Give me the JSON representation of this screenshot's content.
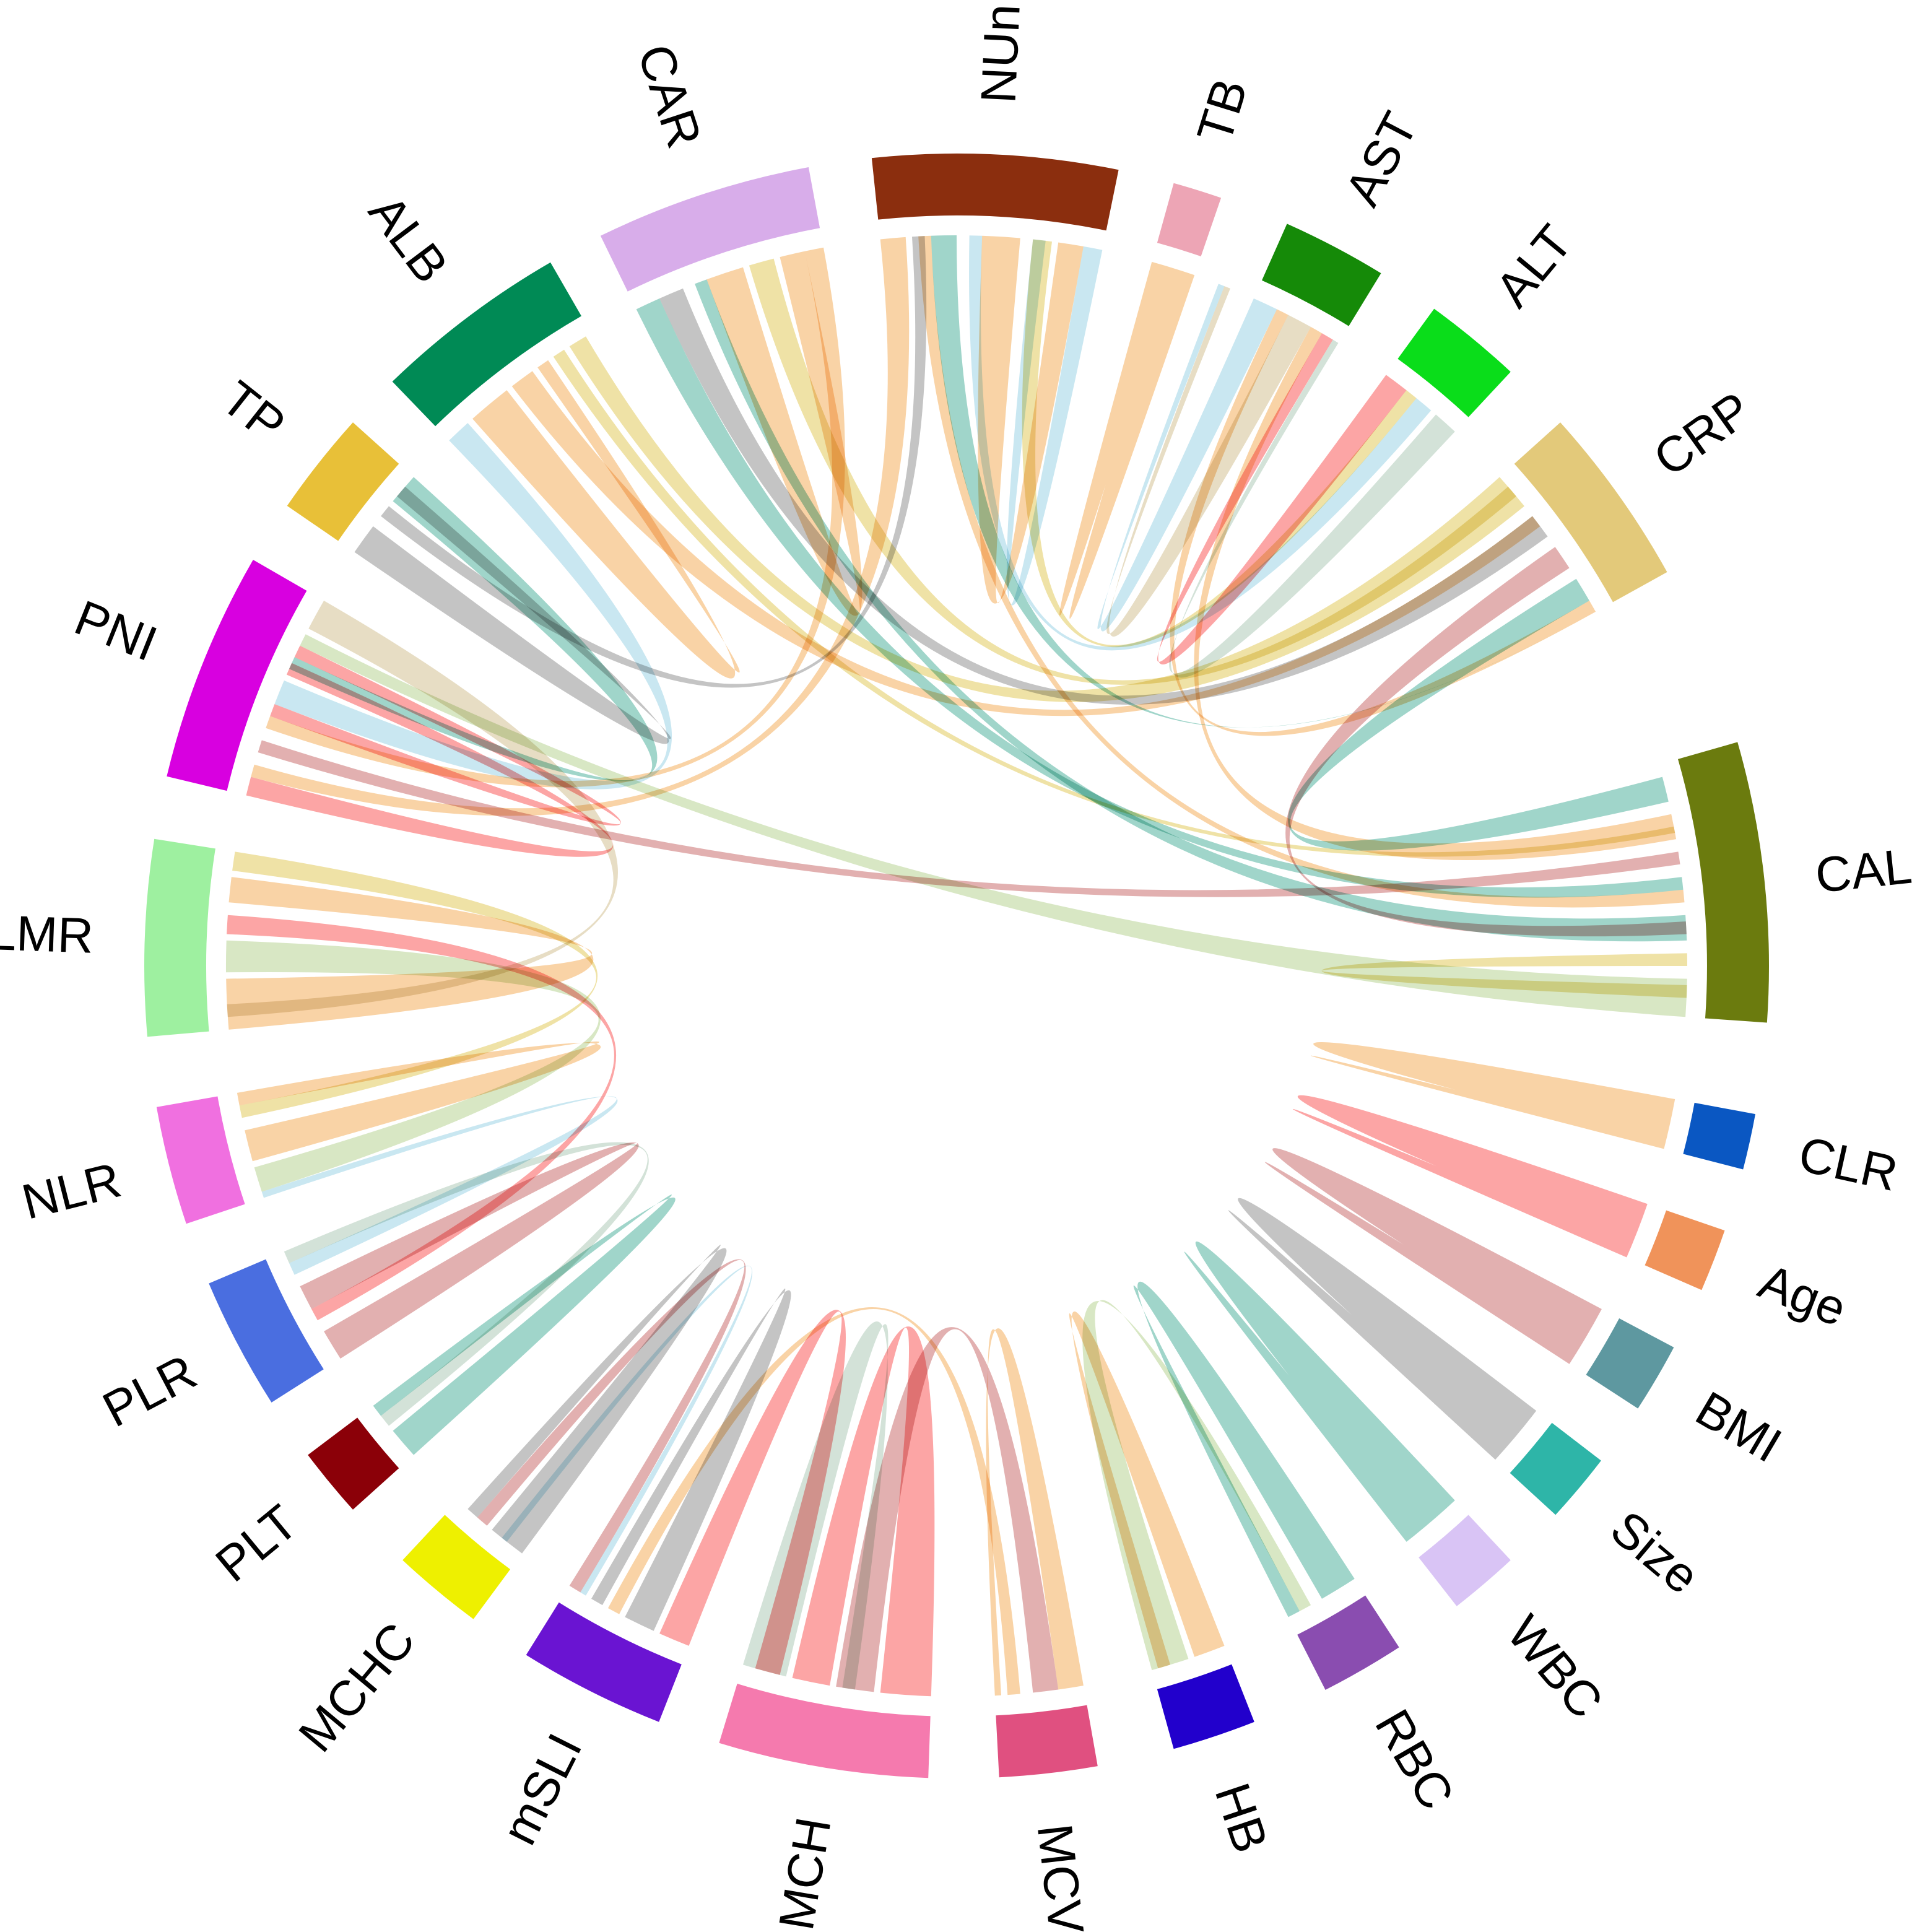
{
  "chart_data": {
    "type": "chord",
    "title": "",
    "sectors": [
      {
        "label": "CALLY",
        "color": "#6B7B0E",
        "start_deg": 16,
        "end_deg": -4
      },
      {
        "label": "CLR",
        "color": "#0A57C2",
        "start_deg": -10.5,
        "end_deg": -14.5
      },
      {
        "label": "Age",
        "color": "#F0935A",
        "start_deg": -19,
        "end_deg": -23.5
      },
      {
        "label": "BMI",
        "color": "#5E98A0",
        "start_deg": -28,
        "end_deg": -33
      },
      {
        "label": "Size",
        "color": "#2EB5A8",
        "start_deg": -37.5,
        "end_deg": -42.5
      },
      {
        "label": "WBC",
        "color": "#D9C4F5",
        "start_deg": -47,
        "end_deg": -52
      },
      {
        "label": "RBC",
        "color": "#8A4DB0",
        "start_deg": -57,
        "end_deg": -63
      },
      {
        "label": "HB",
        "color": "#2200CC",
        "start_deg": -68.5,
        "end_deg": -74.5
      },
      {
        "label": "MCV",
        "color": "#E05080",
        "start_deg": -80,
        "end_deg": -87
      },
      {
        "label": "MCH",
        "color": "#F57AAE",
        "start_deg": -92,
        "end_deg": -107
      },
      {
        "label": "mSLI",
        "color": "#6A14D2",
        "start_deg": -111.5,
        "end_deg": -122
      },
      {
        "label": "MCHC",
        "color": "#EEF000",
        "start_deg": -126.5,
        "end_deg": -133
      },
      {
        "label": "PLT",
        "color": "#8B0008",
        "start_deg": -138,
        "end_deg": -143
      },
      {
        "label": "PLR",
        "color": "#4A6EE0",
        "start_deg": -147.5,
        "end_deg": -157
      },
      {
        "label": "NLR",
        "color": "#F070E0",
        "start_deg": -161.5,
        "end_deg": -170
      },
      {
        "label": "LMR",
        "color": "#9EF0A0",
        "start_deg": -175,
        "end_deg": -189
      },
      {
        "label": "PNI",
        "color": "#D800E0",
        "start_deg": -193.5,
        "end_deg": -210
      },
      {
        "label": "TP",
        "color": "#E8C038",
        "start_deg": -214.5,
        "end_deg": -222
      },
      {
        "label": "ALB",
        "color": "#008A55",
        "start_deg": -226,
        "end_deg": -240
      },
      {
        "label": "CAR",
        "color": "#D8ADEA",
        "start_deg": -244,
        "end_deg": -259.5
      },
      {
        "label": "NUn",
        "color": "#8B2E0E",
        "start_deg": -264,
        "end_deg": -281.5
      },
      {
        "label": "TB",
        "color": "#EDA5B5",
        "start_deg": -285.5,
        "end_deg": -289
      },
      {
        "label": "AST",
        "color": "#158A08",
        "start_deg": -294,
        "end_deg": -301.5
      },
      {
        "label": "ALT",
        "color": "#0ADD1A",
        "start_deg": -306,
        "end_deg": -313
      },
      {
        "label": "CRP",
        "color": "#E3C97A",
        "start_deg": -318,
        "end_deg": -331
      }
    ],
    "links": [
      {
        "from": "CLR",
        "from_range": [
          -10.5,
          -14.5
        ],
        "to": "CLR",
        "to_range": [
          -13.9,
          -14.1
        ],
        "color": "#F5B870"
      },
      {
        "from": "Age",
        "from_range": [
          -19,
          -23.5
        ],
        "to": "Age",
        "to_range": [
          -22.6,
          -22.8
        ],
        "color": "#FA6E6E"
      },
      {
        "from": "BMI",
        "from_range": [
          -28,
          -33
        ],
        "to": "BMI",
        "to_range": [
          -31.9,
          -32.1
        ],
        "color": "#D08080"
      },
      {
        "from": "Size",
        "from_range": [
          -37.5,
          -42.5
        ],
        "to": "Size",
        "to_range": [
          -41.4,
          -41.6
        ],
        "color": "#A0A0A0"
      },
      {
        "from": "WBC",
        "from_range": [
          -47,
          -52
        ],
        "to": "WBC",
        "to_range": [
          -50.9,
          -51.1
        ],
        "color": "#66BBAA"
      },
      {
        "from": "TB",
        "from_range": [
          -285.5,
          -289
        ],
        "to": "TB",
        "to_range": [
          -287.1,
          -287.3
        ],
        "color": "#F5B870"
      },
      {
        "from": "CALLY",
        "from_range": [
          -1,
          -4
        ],
        "to": "PNI",
        "to_range": [
          -206,
          -207
        ],
        "color": "#C0D8A0"
      },
      {
        "from": "CALLY",
        "from_range": [
          9,
          8
        ],
        "to": "PNI",
        "to_range": [
          -197,
          -198
        ],
        "color": "#D08080"
      },
      {
        "from": "CALLY",
        "from_range": [
          4,
          2
        ],
        "to": "CAR",
        "to_range": [
          -249,
          -250
        ],
        "color": "#66BBAA"
      },
      {
        "from": "CALLY",
        "from_range": [
          15,
          13
        ],
        "to": "CRP",
        "to_range": [
          -328,
          -330
        ],
        "color": "#66BBAA"
      },
      {
        "from": "CALLY",
        "from_range": [
          12,
          10
        ],
        "to": "AST",
        "to_range": [
          -299,
          -300
        ],
        "color": "#F5B870"
      },
      {
        "from": "CALLY",
        "from_range": [
          6,
          5
        ],
        "to": "NUn",
        "to_range": [
          -267,
          -268
        ],
        "color": "#F5B870"
      },
      {
        "from": "CALLY",
        "from_range": [
          1,
          0
        ],
        "to": "CALLY",
        "to_range": [
          -1.5,
          -2.5
        ],
        "color": "#E5D070"
      },
      {
        "from": "CRP",
        "from_range": [
          -318,
          -321
        ],
        "to": "ALB",
        "to_range": [
          -238,
          -239.5
        ],
        "color": "#E5D070"
      },
      {
        "from": "CRP",
        "from_range": [
          -322,
          -324
        ],
        "to": "CAR",
        "to_range": [
          -246,
          -248
        ],
        "color": "#A0A0A0"
      },
      {
        "from": "CRP",
        "from_range": [
          -325,
          -327
        ],
        "to": "CALLY",
        "to_range": [
          3.5,
          2.5
        ],
        "color": "#D08080"
      },
      {
        "from": "CRP",
        "from_range": [
          -330,
          -331
        ],
        "to": "AST",
        "to_range": [
          -296,
          -297
        ],
        "color": "#F5B870"
      },
      {
        "from": "ALT",
        "from_range": [
          -306,
          -308
        ],
        "to": "ALT",
        "to_range": [
          -300,
          -301
        ],
        "color": "#FA6E6E"
      },
      {
        "from": "ALT",
        "from_range": [
          -309,
          -310.5
        ],
        "to": "NUn",
        "to_range": [
          -271,
          -272
        ],
        "color": "#A8D8E8"
      },
      {
        "from": "ALT",
        "from_range": [
          -311,
          -313
        ],
        "to": "AST",
        "to_range": [
          -301,
          -301.5
        ],
        "color": "#B8D0C0"
      },
      {
        "from": "AST",
        "from_range": [
          -294,
          -296
        ],
        "to": "AST",
        "to_range": [
          -291,
          -291.5
        ],
        "color": "#A8D8E8"
      },
      {
        "from": "AST",
        "from_range": [
          -297,
          -299
        ],
        "to": "AST",
        "to_range": [
          -291.5,
          -292
        ],
        "color": "#D8C8A0"
      },
      {
        "from": "NUn",
        "from_range": [
          -264,
          -266
        ],
        "to": "PNI",
        "to_range": [
          -195,
          -196
        ],
        "color": "#F5B870"
      },
      {
        "from": "NUn",
        "from_range": [
          -266.5,
          -267.5
        ],
        "to": "TP",
        "to_range": [
          -218,
          -219
        ],
        "color": "#A0A0A0"
      },
      {
        "from": "NUn",
        "from_range": [
          -268,
          -270
        ],
        "to": "CRP",
        "to_range": [
          -331,
          -331
        ],
        "color": "#66BBAA"
      },
      {
        "from": "NUn",
        "from_range": [
          -272,
          -275
        ],
        "to": "NUn",
        "to_range": [
          -278,
          -280
        ],
        "color": "#F5B870"
      },
      {
        "from": "NUn",
        "from_range": [
          -276,
          -277.5
        ],
        "to": "ALT",
        "to_range": [
          -308,
          -309
        ],
        "color": "#E5D070"
      },
      {
        "from": "NUn",
        "from_range": [
          -280,
          -281.5
        ],
        "to": "NUn",
        "to_range": [
          -276,
          -277
        ],
        "color": "#A8D8E8"
      },
      {
        "from": "CAR",
        "from_range": [
          -244,
          -246
        ],
        "to": "CALLY",
        "to_range": [
          7,
          6
        ],
        "color": "#66BBAA"
      },
      {
        "from": "CAR",
        "from_range": [
          -250,
          -253
        ],
        "to": "CAR",
        "to_range": [
          -256,
          -258
        ],
        "color": "#F5B870"
      },
      {
        "from": "CAR",
        "from_range": [
          -253.5,
          -255.5
        ],
        "to": "CRP",
        "to_range": [
          -319,
          -320
        ],
        "color": "#E5D070"
      },
      {
        "from": "CAR",
        "from_range": [
          -258,
          -259.5
        ],
        "to": "PNI",
        "to_range": [
          -199,
          -200
        ],
        "color": "#F5B870"
      },
      {
        "from": "ALB",
        "from_range": [
          -226,
          -228
        ],
        "to": "PNI",
        "to_range": [
          -201,
          -203
        ],
        "color": "#A8D8E8"
      },
      {
        "from": "ALB",
        "from_range": [
          -228.5,
          -232
        ],
        "to": "ALB",
        "to_range": [
          -235,
          -236
        ],
        "color": "#F5B870"
      },
      {
        "from": "ALB",
        "from_range": [
          -232.5,
          -234.5
        ],
        "to": "CRP",
        "to_range": [
          -322,
          -323
        ],
        "color": "#F5B870"
      },
      {
        "from": "ALB",
        "from_range": [
          -236.5,
          -237.5
        ],
        "to": "CALLY",
        "to_range": [
          11,
          10.5
        ],
        "color": "#E5D070"
      },
      {
        "from": "TP",
        "from_range": [
          -214.5,
          -217
        ],
        "to": "TP",
        "to_range": [
          -220,
          -221
        ],
        "color": "#A0A0A0"
      },
      {
        "from": "TP",
        "from_range": [
          -219.5,
          -222
        ],
        "to": "PNI",
        "to_range": [
          -204,
          -205
        ],
        "color": "#66BBAA"
      },
      {
        "from": "PNI",
        "from_range": [
          -193.5,
          -195
        ],
        "to": "PNI",
        "to_range": [
          -203.5,
          -204.5
        ],
        "color": "#FA6E6E"
      },
      {
        "from": "PNI",
        "from_range": [
          -207.5,
          -210
        ],
        "to": "LMR",
        "to_range": [
          -176,
          -177
        ],
        "color": "#D8C8A0"
      },
      {
        "from": "PNI",
        "from_range": [
          -200,
          -201
        ],
        "to": "PNI",
        "to_range": [
          -205,
          -206
        ],
        "color": "#FA6E6E"
      },
      {
        "from": "LMR",
        "from_range": [
          -175,
          -179
        ],
        "to": "LMR",
        "to_range": [
          -185,
          -187
        ],
        "color": "#F5B870"
      },
      {
        "from": "LMR",
        "from_range": [
          -179.5,
          -182
        ],
        "to": "NLR",
        "to_range": [
          -162,
          -164
        ],
        "color": "#C0D8A0"
      },
      {
        "from": "LMR",
        "from_range": [
          -182.5,
          -184
        ],
        "to": "PLR",
        "to_range": [
          -151,
          -152
        ],
        "color": "#FA6E6E"
      },
      {
        "from": "LMR",
        "from_range": [
          -187.5,
          -189
        ],
        "to": "NLR",
        "to_range": [
          -168,
          -169
        ],
        "color": "#E5D070"
      },
      {
        "from": "NLR",
        "from_range": [
          -164.5,
          -167
        ],
        "to": "NLR",
        "to_range": [
          -169,
          -170
        ],
        "color": "#F5B870"
      },
      {
        "from": "NLR",
        "from_range": [
          -161.5,
          -162
        ],
        "to": "PLR",
        "to_range": [
          -155,
          -156
        ],
        "color": "#A8D8E8"
      },
      {
        "from": "PLR",
        "from_range": [
          -147.5,
          -150
        ],
        "to": "PLR",
        "to_range": [
          -152,
          -154
        ],
        "color": "#D08080"
      },
      {
        "from": "PLR",
        "from_range": [
          -156,
          -157
        ],
        "to": "PLT",
        "to_range": [
          -141,
          -142
        ],
        "color": "#B8D0C0"
      },
      {
        "from": "PLT",
        "from_range": [
          -138,
          -140.5
        ],
        "to": "PLT",
        "to_range": [
          -142,
          -143
        ],
        "color": "#66BBAA"
      },
      {
        "from": "MCHC",
        "from_range": [
          -126.5,
          -129.5
        ],
        "to": "MCHC",
        "to_range": [
          -131,
          -132
        ],
        "color": "#A0A0A0"
      },
      {
        "from": "MCHC",
        "from_range": [
          -130,
          -131
        ],
        "to": "mSLI",
        "to_range": [
          -121,
          -122
        ],
        "color": "#D08080"
      },
      {
        "from": "mSLI",
        "from_range": [
          -111.5,
          -114
        ],
        "to": "MCH",
        "to_range": [
          -104,
          -106
        ],
        "color": "#FA6E6E"
      },
      {
        "from": "mSLI",
        "from_range": [
          -114.5,
          -117
        ],
        "to": "mSLI",
        "to_range": [
          -119,
          -120
        ],
        "color": "#A0A0A0"
      },
      {
        "from": "mSLI",
        "from_range": [
          -117.5,
          -118.5
        ],
        "to": "MCV",
        "to_range": [
          -85,
          -86
        ],
        "color": "#F5B870"
      },
      {
        "from": "mSLI",
        "from_range": [
          -120.5,
          -121
        ],
        "to": "MCHC",
        "to_range": [
          -128,
          -128.5
        ],
        "color": "#A8D8E8"
      },
      {
        "from": "MCH",
        "from_range": [
          -92,
          -96
        ],
        "to": "MCH",
        "to_range": [
          -100,
          -103
        ],
        "color": "#FA6E6E"
      },
      {
        "from": "MCH",
        "from_range": [
          -96.5,
          -99.5
        ],
        "to": "MCV",
        "to_range": [
          -82,
          -84
        ],
        "color": "#D08080"
      },
      {
        "from": "MCH",
        "from_range": [
          -103.5,
          -107
        ],
        "to": "MCH",
        "to_range": [
          -98,
          -99
        ],
        "color": "#B8D0C0"
      },
      {
        "from": "MCV",
        "from_range": [
          -80,
          -82
        ],
        "to": "MCV",
        "to_range": [
          -86.5,
          -87
        ],
        "color": "#F5B870"
      },
      {
        "from": "HB",
        "from_range": [
          -68.5,
          -71
        ],
        "to": "HB",
        "to_range": [
          -73,
          -74
        ],
        "color": "#F5B870"
      },
      {
        "from": "HB",
        "from_range": [
          -71.5,
          -74.5
        ],
        "to": "RBC",
        "to_range": [
          -61,
          -62
        ],
        "color": "#C0D8A0"
      },
      {
        "from": "RBC",
        "from_range": [
          -57,
          -60
        ],
        "to": "RBC",
        "to_range": [
          -62,
          -63
        ],
        "color": "#66BBAA"
      }
    ]
  }
}
